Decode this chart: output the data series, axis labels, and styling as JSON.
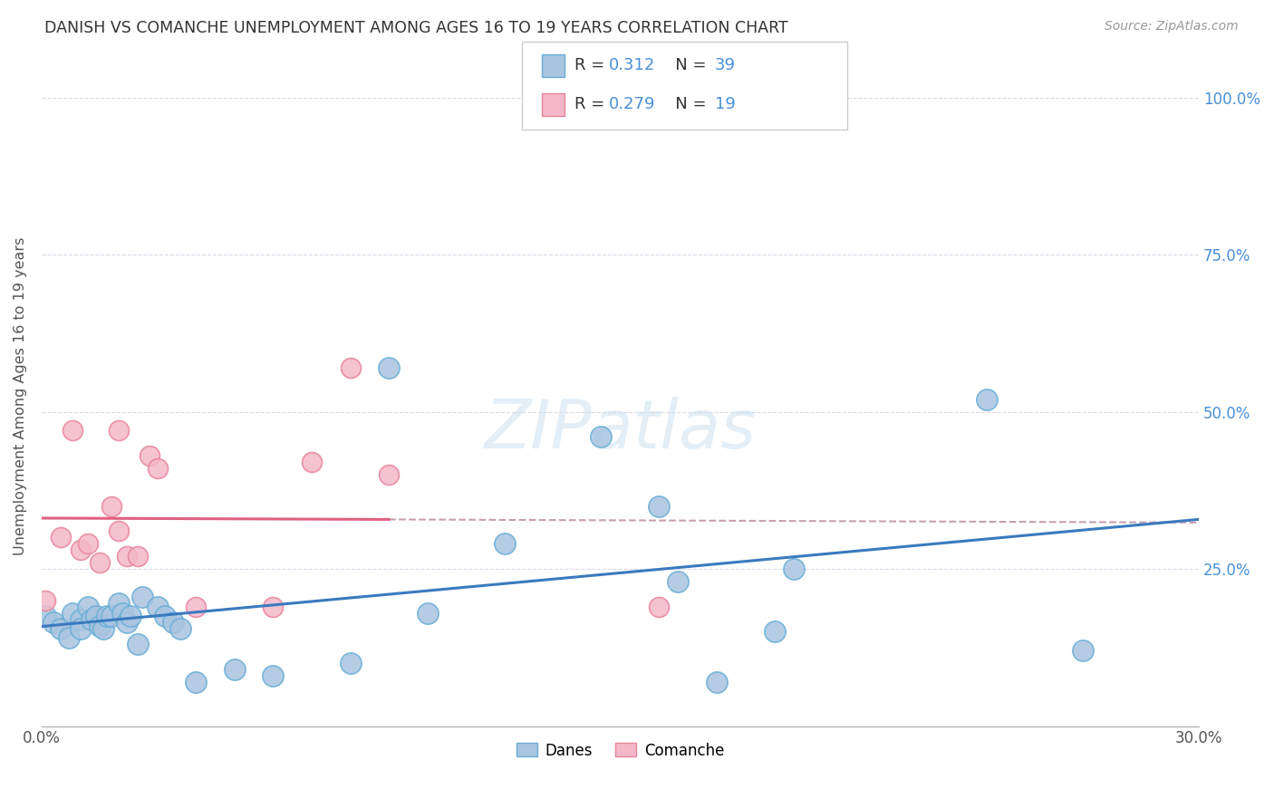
{
  "title": "DANISH VS COMANCHE UNEMPLOYMENT AMONG AGES 16 TO 19 YEARS CORRELATION CHART",
  "source": "Source: ZipAtlas.com",
  "ylabel": "Unemployment Among Ages 16 to 19 years",
  "xlim": [
    0.0,
    0.3
  ],
  "ylim": [
    0.0,
    1.05
  ],
  "xticks": [
    0.0,
    0.05,
    0.1,
    0.15,
    0.2,
    0.25,
    0.3
  ],
  "xticklabels": [
    "0.0%",
    "",
    "",
    "",
    "",
    "",
    "30.0%"
  ],
  "yticks": [
    0.0,
    0.25,
    0.5,
    0.75,
    1.0
  ],
  "right_yticklabels": [
    "",
    "25.0%",
    "50.0%",
    "75.0%",
    "100.0%"
  ],
  "danes_color": "#a8c4e0",
  "danes_edge_color": "#6aaed6",
  "comanche_color": "#f4b8c8",
  "comanche_edge_color": "#e8849a",
  "danes_R": 0.312,
  "danes_N": 39,
  "comanche_R": 0.279,
  "comanche_N": 19,
  "danes_line_color": "#3a7abf",
  "comanche_line_color": "#e06080",
  "comanche_dashed_color": "#c8a0b0",
  "legend_danes_label": "Danes",
  "legend_comanche_label": "Comanche",
  "danes_x": [
    0.001,
    0.003,
    0.005,
    0.007,
    0.008,
    0.01,
    0.01,
    0.012,
    0.013,
    0.014,
    0.015,
    0.016,
    0.017,
    0.018,
    0.02,
    0.021,
    0.022,
    0.023,
    0.025,
    0.026,
    0.03,
    0.032,
    0.034,
    0.036,
    0.04,
    0.05,
    0.06,
    0.08,
    0.09,
    0.1,
    0.12,
    0.145,
    0.16,
    0.165,
    0.175,
    0.19,
    0.195,
    0.245,
    0.27
  ],
  "danes_y": [
    0.175,
    0.165,
    0.155,
    0.14,
    0.18,
    0.17,
    0.155,
    0.19,
    0.17,
    0.175,
    0.16,
    0.155,
    0.175,
    0.175,
    0.195,
    0.18,
    0.165,
    0.175,
    0.13,
    0.205,
    0.19,
    0.175,
    0.165,
    0.155,
    0.07,
    0.09,
    0.08,
    0.1,
    0.57,
    0.18,
    0.29,
    0.46,
    0.35,
    0.23,
    0.07,
    0.15,
    0.25,
    0.52,
    0.12
  ],
  "comanche_x": [
    0.001,
    0.005,
    0.008,
    0.01,
    0.012,
    0.015,
    0.018,
    0.02,
    0.022,
    0.025,
    0.028,
    0.03,
    0.04,
    0.06,
    0.07,
    0.08,
    0.09,
    0.16,
    0.02
  ],
  "comanche_y": [
    0.2,
    0.3,
    0.47,
    0.28,
    0.29,
    0.26,
    0.35,
    0.31,
    0.27,
    0.27,
    0.43,
    0.41,
    0.19,
    0.19,
    0.42,
    0.57,
    0.4,
    0.19,
    0.47
  ],
  "background_color": "#ffffff",
  "grid_color": "#ddd8e8"
}
